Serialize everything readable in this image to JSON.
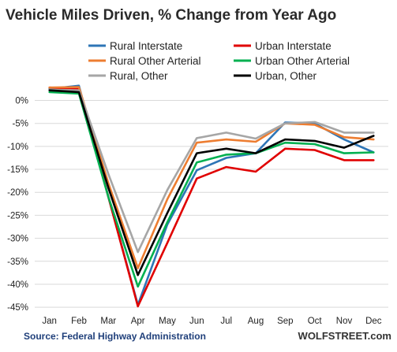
{
  "chart_data": {
    "type": "line",
    "title": "Vehicle Miles Driven, % Change from Year Ago",
    "categories": [
      "Jan",
      "Feb",
      "Mar",
      "Apr",
      "May",
      "Jun",
      "Jul",
      "Aug",
      "Sep",
      "Oct",
      "Nov",
      "Dec"
    ],
    "yticks": [
      0,
      -5,
      -10,
      -15,
      -20,
      -25,
      -30,
      -35,
      -40,
      -45
    ],
    "ytick_labels": [
      "0%",
      "-5%",
      "-10%",
      "-15%",
      "-20%",
      "-25%",
      "-30%",
      "-35%",
      "-40%",
      "-45%"
    ],
    "ylim": [
      -46,
      3
    ],
    "grid": true,
    "legend_position": "top",
    "series": [
      {
        "name": "Rural Interstate",
        "color": "#2e75b6",
        "values": [
          2.5,
          3.2,
          -21,
          -44.5,
          -27,
          -15.2,
          -12.5,
          -11.5,
          -4.8,
          -5,
          -8.5,
          -11.3
        ]
      },
      {
        "name": "Urban Interstate",
        "color": "#e00000",
        "values": [
          2.8,
          2.5,
          -21,
          -44.8,
          -31,
          -17,
          -14.5,
          -15.5,
          -10.5,
          -10.8,
          -13,
          -13
        ]
      },
      {
        "name": "Rural Other Arterial",
        "color": "#ed7d31",
        "values": [
          2.8,
          2.9,
          -18,
          -36.5,
          -21.5,
          -9.2,
          -8.5,
          -9,
          -5,
          -5.3,
          -8,
          -8.5
        ]
      },
      {
        "name": "Urban Other Arterial",
        "color": "#00b050",
        "values": [
          1.8,
          1.5,
          -21,
          -40.5,
          -26.5,
          -13.5,
          -11.8,
          -11.5,
          -9.2,
          -9.5,
          -11.5,
          -11.3
        ]
      },
      {
        "name": "Rural, Other",
        "color": "#a6a6a6",
        "values": [
          2.3,
          2.2,
          -16,
          -33,
          -19.5,
          -8.2,
          -7,
          -8.3,
          -5,
          -4.7,
          -7,
          -7
        ]
      },
      {
        "name": "Urban, Other",
        "color": "#000000",
        "values": [
          2.2,
          1.8,
          -19,
          -38,
          -24.5,
          -11.5,
          -10.5,
          -11.5,
          -8.5,
          -8.8,
          -10.3,
          -7.7
        ]
      }
    ],
    "source": "Source: Federal Highway Administration",
    "brand": "WOLFSTREET.com"
  }
}
